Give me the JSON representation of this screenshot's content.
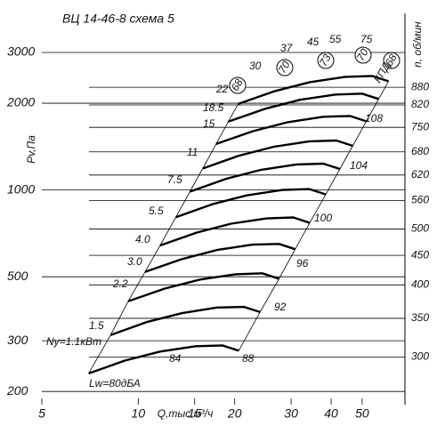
{
  "chart_data": {
    "type": "line",
    "title": "ВЦ 14-46-8 схема 5",
    "x_label": "Q,тыс.м³/ч",
    "y_label": "Pv,Па",
    "y2_label": "n, об/мин",
    "xscale": "log",
    "yscale": "log",
    "y2scale": "log",
    "xlim": [
      5,
      68
    ],
    "ylim": [
      180,
      4100
    ],
    "y2lim": [
      248,
      1182
    ],
    "xticks": [
      5,
      10,
      15,
      20,
      30,
      40,
      50
    ],
    "yticks": [
      200,
      300,
      500,
      1000,
      2000,
      3000
    ],
    "y2ticks": [
      300,
      350,
      400,
      450,
      500,
      560,
      620,
      680,
      750,
      820,
      880
    ],
    "grid": true,
    "series": [
      {
        "color": "#000000",
        "x": [
          7.0,
          9.1,
          11.7,
          15.1,
          18.3,
          20.6
        ],
        "values": [
          231,
          256,
          275,
          287,
          289,
          277
        ]
      },
      {
        "color": "#000000",
        "x": [
          8.2,
          10.6,
          13.7,
          17.6,
          21.4,
          24.0
        ],
        "values": [
          314,
          348,
          374,
          391,
          393,
          377
        ]
      },
      {
        "color": "#000000",
        "x": [
          9.3,
          12.1,
          15.6,
          20.1,
          24.4,
          27.5
        ],
        "values": [
          411,
          455,
          489,
          510,
          514,
          492
        ]
      },
      {
        "color": "#000000",
        "x": [
          10.5,
          13.7,
          17.6,
          22.7,
          27.5,
          30.9
        ],
        "values": [
          520,
          576,
          619,
          646,
          650,
          623
        ]
      },
      {
        "color": "#000000",
        "x": [
          11.7,
          15.2,
          19.5,
          25.2,
          30.5,
          34.3
        ],
        "values": [
          642,
          711,
          764,
          797,
          803,
          769
        ]
      },
      {
        "color": "#000000",
        "x": [
          13.1,
          17.0,
          21.8,
          28.2,
          34.2,
          38.5
        ],
        "values": [
          805,
          892,
          958,
          1000,
          1007,
          965
        ]
      },
      {
        "color": "#000000",
        "x": [
          14.5,
          18.8,
          24.2,
          31.2,
          37.8,
          42.6
        ],
        "values": [
          987,
          1093,
          1175,
          1226,
          1234,
          1183
        ]
      },
      {
        "color": "#000000",
        "x": [
          15.9,
          20.6,
          26.5,
          34.2,
          41.5,
          46.7
        ],
        "values": [
          1187,
          1315,
          1413,
          1475,
          1485,
          1423
        ]
      },
      {
        "color": "#000000",
        "x": [
          17.5,
          22.8,
          29.3,
          37.8,
          45.8,
          51.5
        ],
        "values": [
          1444,
          1600,
          1719,
          1794,
          1806,
          1731
        ]
      },
      {
        "color": "#000000",
        "x": [
          19.1,
          24.9,
          32.0,
          41.3,
          50.0,
          56.3
        ],
        "values": [
          1726,
          1913,
          2055,
          2144,
          2159,
          2069
        ]
      },
      {
        "color": "#000000",
        "x": [
          20.5,
          26.7,
          34.3,
          44.3,
          53.7,
          60.4
        ],
        "values": [
          1988,
          2203,
          2366,
          2469,
          2487,
          2383
        ]
      }
    ],
    "power_labels": [
      "Ny=1.1кВт",
      "1.5",
      "2.2",
      "3.0",
      "4.0",
      "5.5",
      "7.5",
      "11",
      "15",
      "18.5",
      "22",
      "30",
      "37",
      "45",
      "55",
      "75"
    ],
    "noise_labels": [
      "Lw=80дБА",
      "84",
      "88",
      "92",
      "96",
      "100",
      "104",
      "108"
    ],
    "efficiency_title": "КПД",
    "efficiency_labels": [
      "68",
      "70",
      "73",
      "70",
      "68"
    ]
  }
}
